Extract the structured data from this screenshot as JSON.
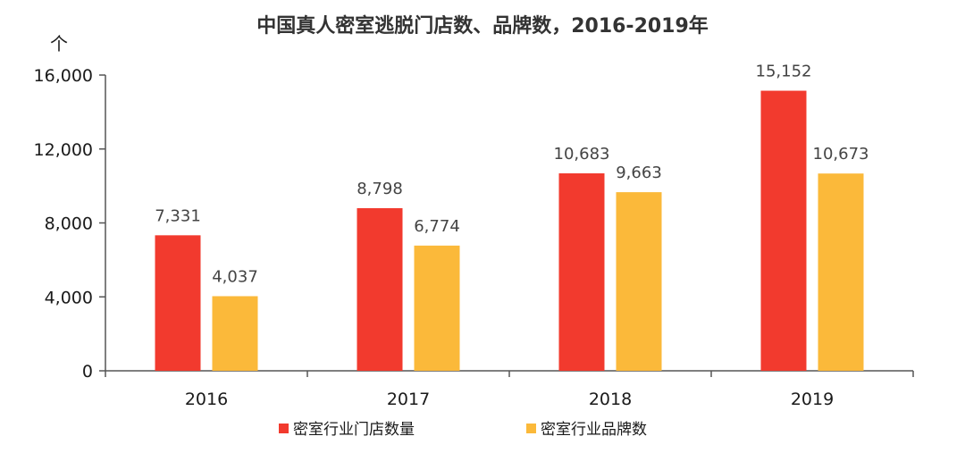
{
  "chart_data": {
    "type": "bar",
    "title": "中国真人密室逃脱门店数、品牌数，2016-2019年",
    "ylabel": "个",
    "xlabel": "",
    "categories": [
      "2016",
      "2017",
      "2018",
      "2019"
    ],
    "series": [
      {
        "name": "密室行业门店数量",
        "color": "#f23a2e",
        "values": [
          7331,
          8798,
          10683,
          15152
        ],
        "labels": [
          "7,331",
          "8,798",
          "10,683",
          "15,152"
        ]
      },
      {
        "name": "密室行业品牌数",
        "color": "#fbb93a",
        "values": [
          4037,
          6774,
          9663,
          10673
        ],
        "labels": [
          "4,037",
          "6,774",
          "9,663",
          "10,673"
        ]
      }
    ],
    "ylim": [
      0,
      16000
    ],
    "yticks": [
      0,
      4000,
      8000,
      12000,
      16000
    ],
    "ytick_labels": [
      "0",
      "4,000",
      "8,000",
      "12,000",
      "16,000"
    ],
    "grid": false,
    "legend_position": "bottom"
  }
}
